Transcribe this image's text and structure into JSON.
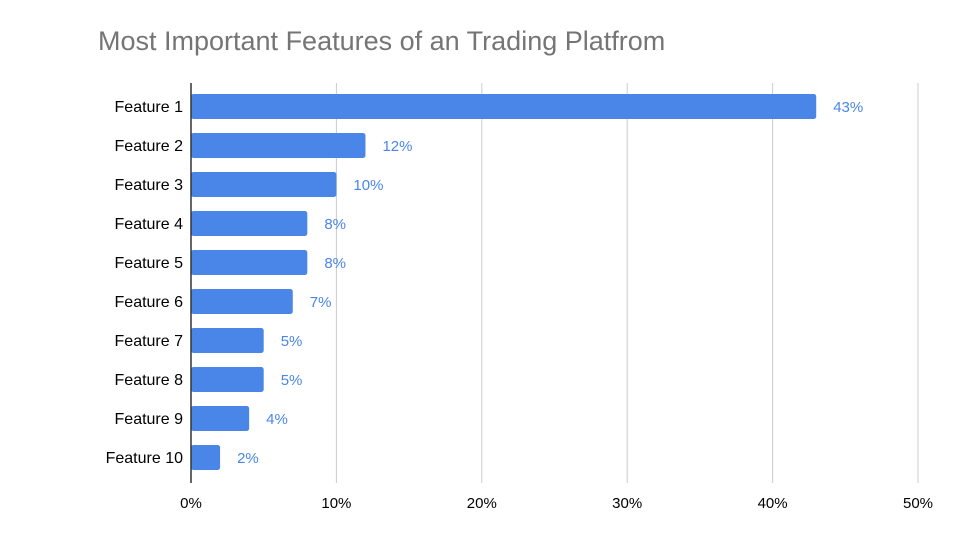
{
  "chart_data": {
    "type": "bar",
    "orientation": "horizontal",
    "title": "Most Important Features of an Trading Platfrom",
    "xlabel": "",
    "ylabel": "",
    "categories": [
      "Feature 1",
      "Feature 2",
      "Feature 3",
      "Feature 4",
      "Feature 5",
      "Feature 6",
      "Feature 7",
      "Feature 8",
      "Feature 9",
      "Feature 10"
    ],
    "values": [
      43,
      12,
      10,
      8,
      8,
      7,
      5,
      5,
      4,
      2
    ],
    "data_labels": [
      "43%",
      "12%",
      "10%",
      "8%",
      "8%",
      "7%",
      "5%",
      "5%",
      "4%",
      "2%"
    ],
    "xlim": [
      0,
      50
    ],
    "x_ticks": [
      0,
      10,
      20,
      30,
      40,
      50
    ],
    "x_tick_labels": [
      "0%",
      "10%",
      "20%",
      "30%",
      "40%",
      "50%"
    ],
    "grid": true,
    "legend": "none",
    "colors": {
      "bar": "#4a86e8",
      "data_label": "#4a86e8",
      "grid": "#cccccc",
      "axis": "#333333",
      "title": "#757575",
      "text": "#000000"
    }
  }
}
